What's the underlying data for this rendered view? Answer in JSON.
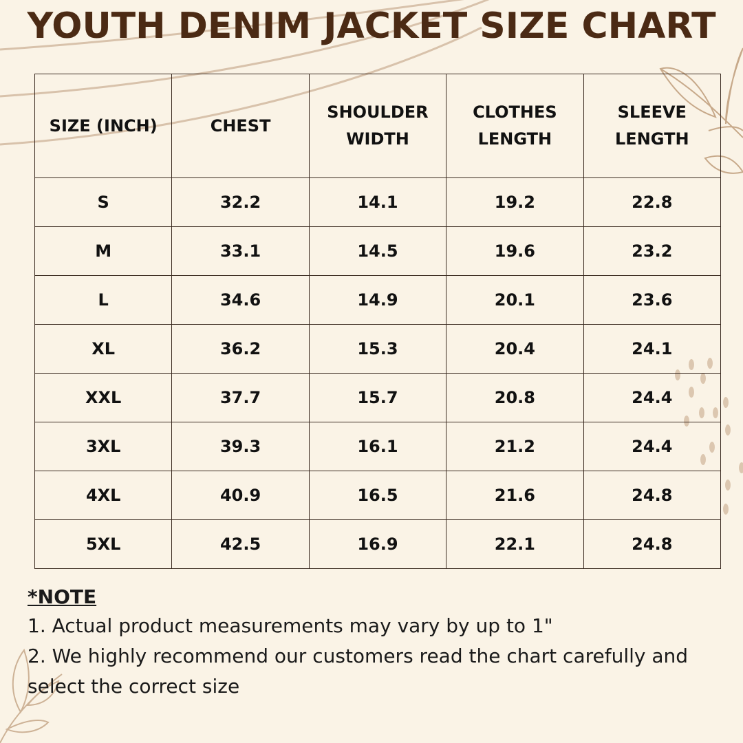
{
  "title": "YOUTH DENIM JACKET SIZE CHART",
  "table": {
    "headers": [
      "SIZE (INCH)",
      "CHEST",
      "SHOULDER WIDTH",
      "CLOTHES LENGTH",
      "SLEEVE LENGTH"
    ],
    "rows": [
      [
        "S",
        "32.2",
        "14.1",
        "19.2",
        "22.8"
      ],
      [
        "M",
        "33.1",
        "14.5",
        "19.6",
        "23.2"
      ],
      [
        "L",
        "34.6",
        "14.9",
        "20.1",
        "23.6"
      ],
      [
        "XL",
        "36.2",
        "15.3",
        "20.4",
        "24.1"
      ],
      [
        "XXL",
        "37.7",
        "15.7",
        "20.8",
        "24.4"
      ],
      [
        "3XL",
        "39.3",
        "16.1",
        "21.2",
        "24.4"
      ],
      [
        "4XL",
        "40.9",
        "16.5",
        "21.6",
        "24.8"
      ],
      [
        "5XL",
        "42.5",
        "16.9",
        "22.1",
        "24.8"
      ]
    ]
  },
  "note": {
    "title": "*NOTE",
    "lines": [
      "1. Actual product measurements may vary by up to 1\"",
      "2. We highly recommend our customers read the chart carefully and select the correct size"
    ]
  },
  "colors": {
    "background": "#faf3e6",
    "title": "#4b2a14",
    "decoration": "#d4b9a0"
  }
}
